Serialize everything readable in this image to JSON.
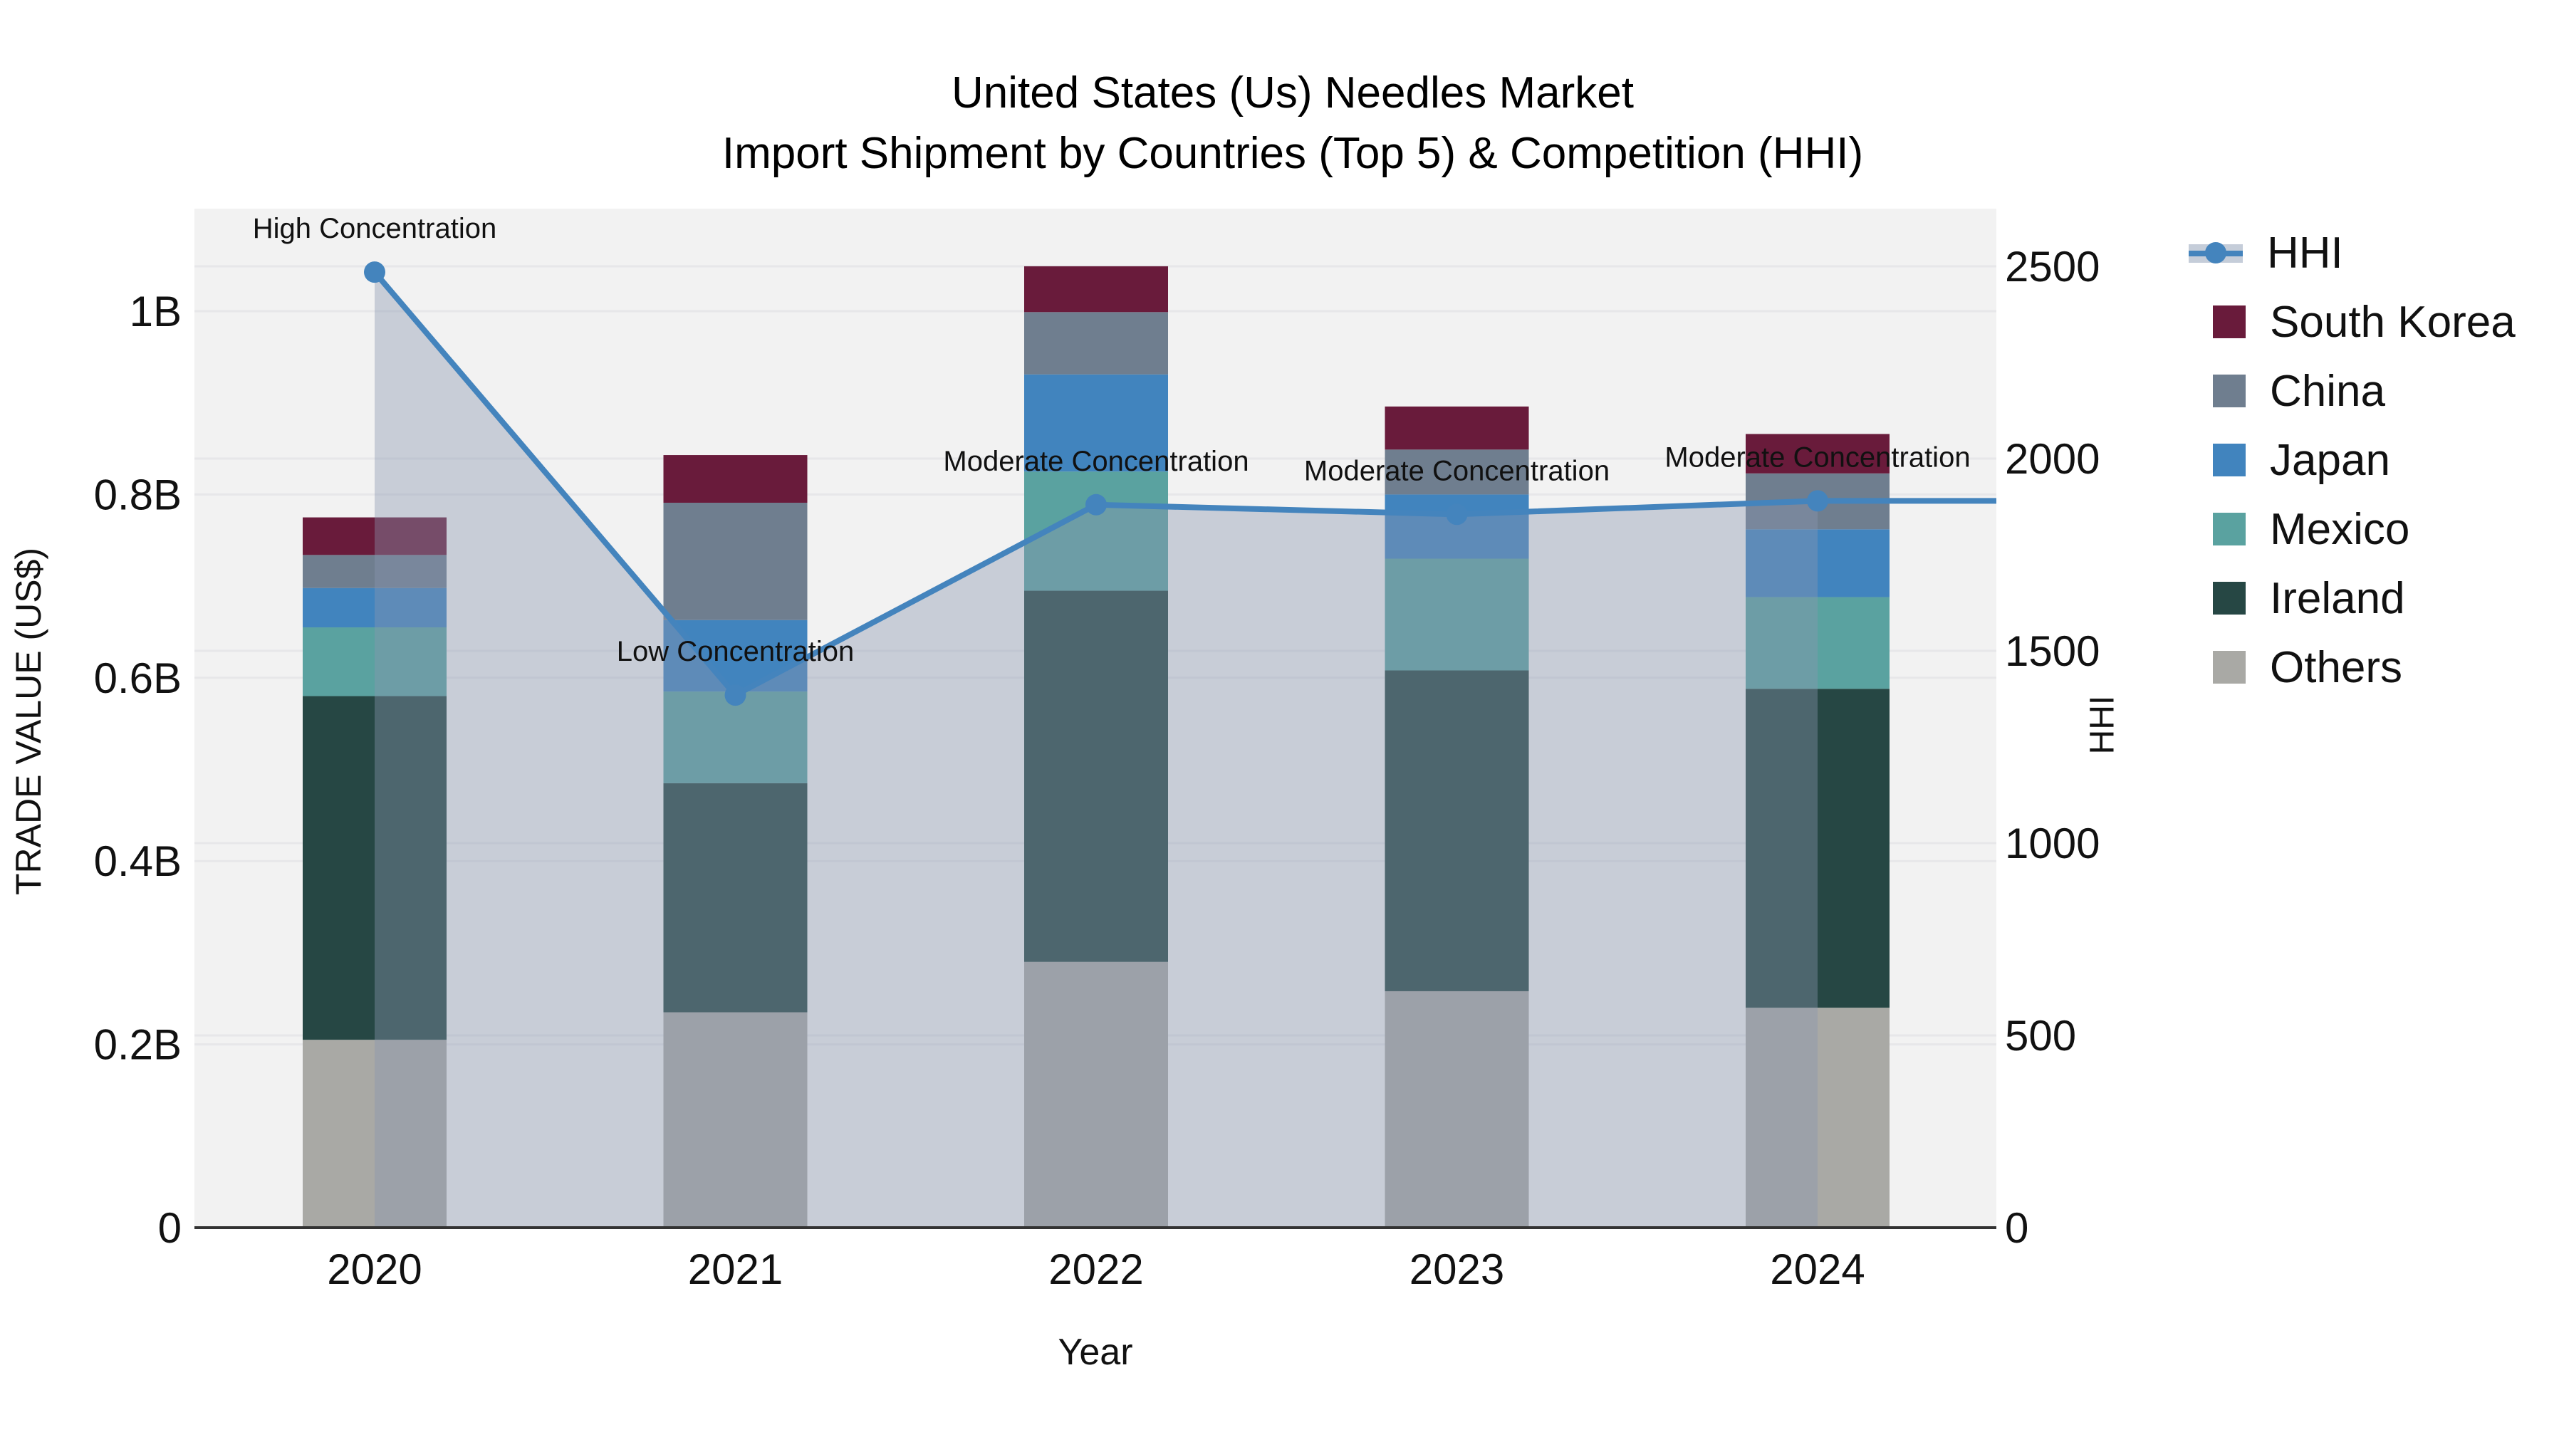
{
  "title": {
    "line1": "United States (Us) Needles Market",
    "line2": "Import Shipment by Countries (Top 5) & Competition (HHI)"
  },
  "axes": {
    "left": {
      "title": "TRADE VALUE (US$)"
    },
    "right": {
      "title": "HHI"
    },
    "x": {
      "title": "Year"
    }
  },
  "colors": {
    "plot_bg": "#f2f2f2",
    "gridline": "#e7e7e9",
    "axis_line": "#333333",
    "hhi_line": "#4484bd",
    "area_fill": "rgba(137,150,175,0.40)",
    "area_band": "#c5cdd9",
    "text": "#111111"
  },
  "legend": {
    "items": [
      {
        "label": "HHI",
        "type": "line",
        "color": "#4484bd"
      },
      {
        "label": "South Korea",
        "type": "square",
        "color": "#691b3b"
      },
      {
        "label": "China",
        "type": "square",
        "color": "#6f7e8f"
      },
      {
        "label": "Japan",
        "type": "square",
        "color": "#4184be"
      },
      {
        "label": "Mexico",
        "type": "square",
        "color": "#5aa2a0"
      },
      {
        "label": "Ireland",
        "type": "square",
        "color": "#264744"
      },
      {
        "label": "Others",
        "type": "square",
        "color": "#a9a9a5"
      }
    ]
  },
  "chart_data": {
    "type": "stacked-bar + line (dual axis)",
    "title": "United States (Us) Needles Market — Import Shipment by Countries (Top 5) & Competition (HHI)",
    "xlabel": "Year",
    "ylabel_left": "TRADE VALUE (US$)",
    "ylabel_right": "HHI",
    "units": "billions of US$",
    "categories": [
      "2020",
      "2021",
      "2022",
      "2023",
      "2024"
    ],
    "stack_bottom_to_top": [
      "Others",
      "Ireland",
      "Mexico",
      "Japan",
      "China",
      "South Korea"
    ],
    "series": [
      {
        "name": "South Korea",
        "color": "#691b3b",
        "values": [
          0.041,
          0.052,
          0.05,
          0.047,
          0.043
        ]
      },
      {
        "name": "China",
        "color": "#6f7e8f",
        "values": [
          0.036,
          0.128,
          0.068,
          0.049,
          0.061
        ]
      },
      {
        "name": "Japan",
        "color": "#4184be",
        "values": [
          0.043,
          0.078,
          0.106,
          0.07,
          0.074
        ]
      },
      {
        "name": "Mexico",
        "color": "#5aa2a0",
        "values": [
          0.075,
          0.1,
          0.13,
          0.122,
          0.1
        ]
      },
      {
        "name": "Ireland",
        "color": "#264744",
        "values": [
          0.375,
          0.25,
          0.405,
          0.35,
          0.348
        ]
      },
      {
        "name": "Others",
        "color": "#a9a9a5",
        "values": [
          0.205,
          0.235,
          0.29,
          0.258,
          0.24
        ]
      }
    ],
    "bar_totals": [
      0.775,
      0.843,
      1.049,
      0.896,
      0.866
    ],
    "hhi": {
      "name": "HHI",
      "color": "#4484bd",
      "values": [
        2485,
        1385,
        1880,
        1855,
        1890
      ]
    },
    "annotations": [
      {
        "category": "2020",
        "text": "High Concentration"
      },
      {
        "category": "2021",
        "text": "Low Concentration"
      },
      {
        "category": "2022",
        "text": "Moderate Concentration"
      },
      {
        "category": "2023",
        "text": "Moderate Concentration"
      },
      {
        "category": "2024",
        "text": "Moderate Concentration"
      }
    ],
    "left_axis": {
      "ylim": [
        0,
        1.05
      ],
      "ticks": [
        {
          "label": "0",
          "value": 0.0
        },
        {
          "label": "0.2B",
          "value": 0.2
        },
        {
          "label": "0.4B",
          "value": 0.4
        },
        {
          "label": "0.6B",
          "value": 0.6
        },
        {
          "label": "0.8B",
          "value": 0.8
        },
        {
          "label": "1B",
          "value": 1.0
        }
      ]
    },
    "right_axis": {
      "ylim": [
        0,
        2625
      ],
      "ticks": [
        {
          "label": "0",
          "value": 0
        },
        {
          "label": "500",
          "value": 500
        },
        {
          "label": "1000",
          "value": 1000
        },
        {
          "label": "1500",
          "value": 1500
        },
        {
          "label": "2000",
          "value": 2000
        },
        {
          "label": "2500",
          "value": 2500
        }
      ]
    },
    "grid": true,
    "legend_position": "right"
  }
}
